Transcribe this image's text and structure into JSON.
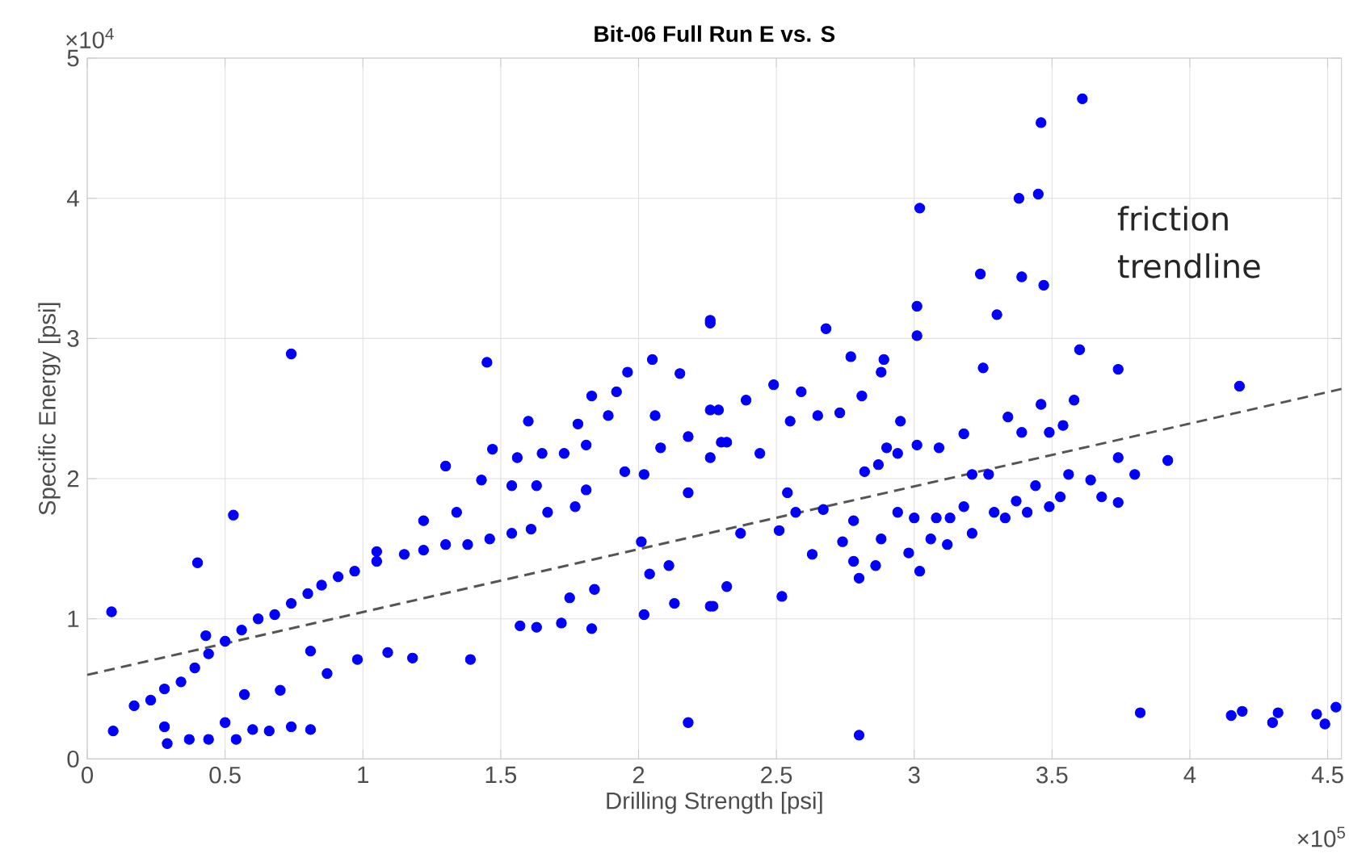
{
  "chart_data": {
    "type": "scatter",
    "title": "Bit-06 Full Run E vs. S",
    "xlabel": "Drilling Strength [psi]",
    "ylabel": "Specific Energy [psi]",
    "annotations": [
      "×10$^{4}$",
      "×10$^{5}$"
    ],
    "xlim": [
      0,
      4.55
    ],
    "ylim": [
      0,
      5
    ],
    "xticks": [
      0,
      0.5,
      1,
      1.5,
      2,
      2.5,
      3,
      3.5,
      4,
      4.5
    ],
    "yticks": [
      0,
      1,
      2,
      3,
      4,
      5
    ],
    "grid": true,
    "marker": "circle",
    "series": [
      {
        "color": "#0000ff",
        "x": [
          0.088,
          0.094,
          0.17,
          0.23,
          0.28,
          0.34,
          0.39,
          0.43,
          0.44,
          0.5,
          0.56,
          0.62,
          0.68,
          0.74,
          0.8,
          0.85,
          0.91,
          0.97,
          1.05,
          1.15,
          1.22,
          1.3,
          1.38,
          1.46,
          1.54,
          1.61,
          0.28,
          0.29,
          0.37,
          0.44,
          0.5,
          0.54,
          0.6,
          0.66,
          0.74,
          0.81,
          0.57,
          0.7,
          0.53,
          0.4,
          0.74,
          0.87,
          0.98,
          1.09,
          1.18,
          1.39,
          0.81,
          1.05,
          1.45,
          1.47,
          1.3,
          1.34,
          1.22,
          1.43,
          1.54,
          1.56,
          1.6,
          1.63,
          1.65,
          1.73,
          1.78,
          1.81,
          1.83,
          1.89,
          1.92,
          1.96,
          2.05,
          2.15,
          2.26,
          1.95,
          2.02,
          1.77,
          1.81,
          1.67,
          1.57,
          1.63,
          1.72,
          1.83,
          1.75,
          1.84,
          2.01,
          2.04,
          2.11,
          2.02,
          2.13,
          2.18,
          2.26,
          2.06,
          2.08,
          2.18,
          2.18,
          2.3,
          2.29,
          2.26,
          2.68,
          2.77,
          2.89,
          2.88,
          2.81,
          2.73,
          2.59,
          2.49,
          2.39,
          2.26,
          2.32,
          2.44,
          2.55,
          2.65,
          2.26,
          2.37,
          2.51,
          2.63,
          2.27,
          2.32,
          2.52,
          2.54,
          2.57,
          2.67,
          2.74,
          2.78,
          2.8,
          2.86,
          2.78,
          2.82,
          2.87,
          2.9,
          2.95,
          2.94,
          3.01,
          3.09,
          3.18,
          2.88,
          2.98,
          3.02,
          2.8,
          3.02,
          3.01,
          3.01,
          3.24,
          3.25,
          3.3,
          3.34,
          3.39,
          3.38,
          3.45,
          3.46,
          3.47,
          3.61,
          3.6,
          3.74,
          3.58,
          3.46,
          4.18,
          3.92,
          3.8,
          3.74,
          3.74,
          3.08,
          3.18,
          3.21,
          3.29,
          3.37,
          3.44,
          3.49,
          3.56,
          3.64,
          3.68,
          3.06,
          3.13,
          3.27,
          3.21,
          3.39,
          3.49,
          3.54,
          3.12,
          3.33,
          3.41,
          3.53,
          3.0,
          2.94,
          3.82,
          4.15,
          4.19,
          4.3,
          4.32,
          4.46,
          4.49,
          4.53
        ],
        "values": [
          1.05,
          0.2,
          0.38,
          0.42,
          0.5,
          0.55,
          0.65,
          0.88,
          0.75,
          0.84,
          0.92,
          1.0,
          1.03,
          1.11,
          1.18,
          1.24,
          1.3,
          1.34,
          1.41,
          1.46,
          1.49,
          1.53,
          1.53,
          1.57,
          1.61,
          1.64,
          0.23,
          0.11,
          0.14,
          0.14,
          0.26,
          0.14,
          0.21,
          0.2,
          0.23,
          0.21,
          0.46,
          0.49,
          1.74,
          1.4,
          2.89,
          0.61,
          0.71,
          0.76,
          0.72,
          0.71,
          0.77,
          1.48,
          2.83,
          2.21,
          2.09,
          1.76,
          1.7,
          1.99,
          1.95,
          2.15,
          2.41,
          1.95,
          2.18,
          2.18,
          2.39,
          2.24,
          2.59,
          2.45,
          2.62,
          2.76,
          2.85,
          2.75,
          3.13,
          2.05,
          2.03,
          1.8,
          1.92,
          1.76,
          0.95,
          0.94,
          0.97,
          0.93,
          1.15,
          1.21,
          1.55,
          1.32,
          1.38,
          1.03,
          1.11,
          0.26,
          1.09,
          2.45,
          2.22,
          2.3,
          1.9,
          2.26,
          2.49,
          3.11,
          3.07,
          2.87,
          2.85,
          2.76,
          2.59,
          2.47,
          2.62,
          2.67,
          2.56,
          2.49,
          2.26,
          2.18,
          2.41,
          2.45,
          2.15,
          1.61,
          1.63,
          1.46,
          1.09,
          1.23,
          1.16,
          1.9,
          1.76,
          1.78,
          1.55,
          1.41,
          1.29,
          1.38,
          1.7,
          2.05,
          2.1,
          2.22,
          2.41,
          2.18,
          2.24,
          2.22,
          2.32,
          1.57,
          1.47,
          1.34,
          0.17,
          3.93,
          3.23,
          3.02,
          3.46,
          2.79,
          3.17,
          2.44,
          3.44,
          4.0,
          4.03,
          4.54,
          3.38,
          4.71,
          2.92,
          2.78,
          2.56,
          2.53,
          2.66,
          2.13,
          2.03,
          2.15,
          1.83,
          1.72,
          1.8,
          1.61,
          1.76,
          1.84,
          1.95,
          1.8,
          2.03,
          1.99,
          1.87,
          1.57,
          1.72,
          2.03,
          2.03,
          2.33,
          2.33,
          2.38,
          1.53,
          1.72,
          1.76,
          1.87,
          1.72,
          1.76,
          0.33,
          0.31,
          0.34,
          0.26,
          0.33,
          0.32,
          0.25,
          0.37
        ]
      },
      {
        "type": "line",
        "name": "friction trendline",
        "color": "#555555",
        "line_style": "dashed",
        "marker": "none",
        "x": [
          0,
          4.55
        ],
        "values": [
          0.6,
          2.64
        ]
      }
    ]
  }
}
